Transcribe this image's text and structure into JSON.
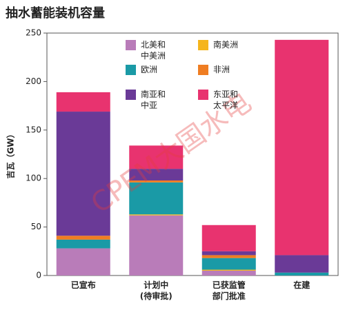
{
  "chart_data": {
    "type": "stacked_bar",
    "title": "抽水蓄能装机容量",
    "y_label": "吉瓦（GW）",
    "watermark": "CPEM大国水电",
    "categories": [
      "已宣布",
      "计划中\n(待审批)",
      "已获监管\n部门批准",
      "在建"
    ],
    "series": [
      {
        "name": "北美和\n中美洲",
        "color": "#b97cb9",
        "values": [
          28,
          62,
          5,
          0
        ]
      },
      {
        "name": "南美洲",
        "color": "#f5b51c",
        "values": [
          0,
          1,
          1,
          0
        ]
      },
      {
        "name": "欧洲",
        "color": "#1a9aa6",
        "values": [
          9,
          33,
          12,
          3
        ]
      },
      {
        "name": "非洲",
        "color": "#ef7d22",
        "values": [
          4,
          2,
          3,
          0
        ]
      },
      {
        "name": "南亚和\n中亚",
        "color": "#6a3a97",
        "values": [
          128,
          12,
          4,
          18
        ]
      },
      {
        "name": "东亚和\n太平洋",
        "color": "#e8336f",
        "values": [
          20,
          24,
          27,
          222
        ]
      }
    ],
    "ylim": [
      0,
      250
    ],
    "yticks": [
      0,
      50,
      100,
      150,
      200,
      250
    ]
  }
}
